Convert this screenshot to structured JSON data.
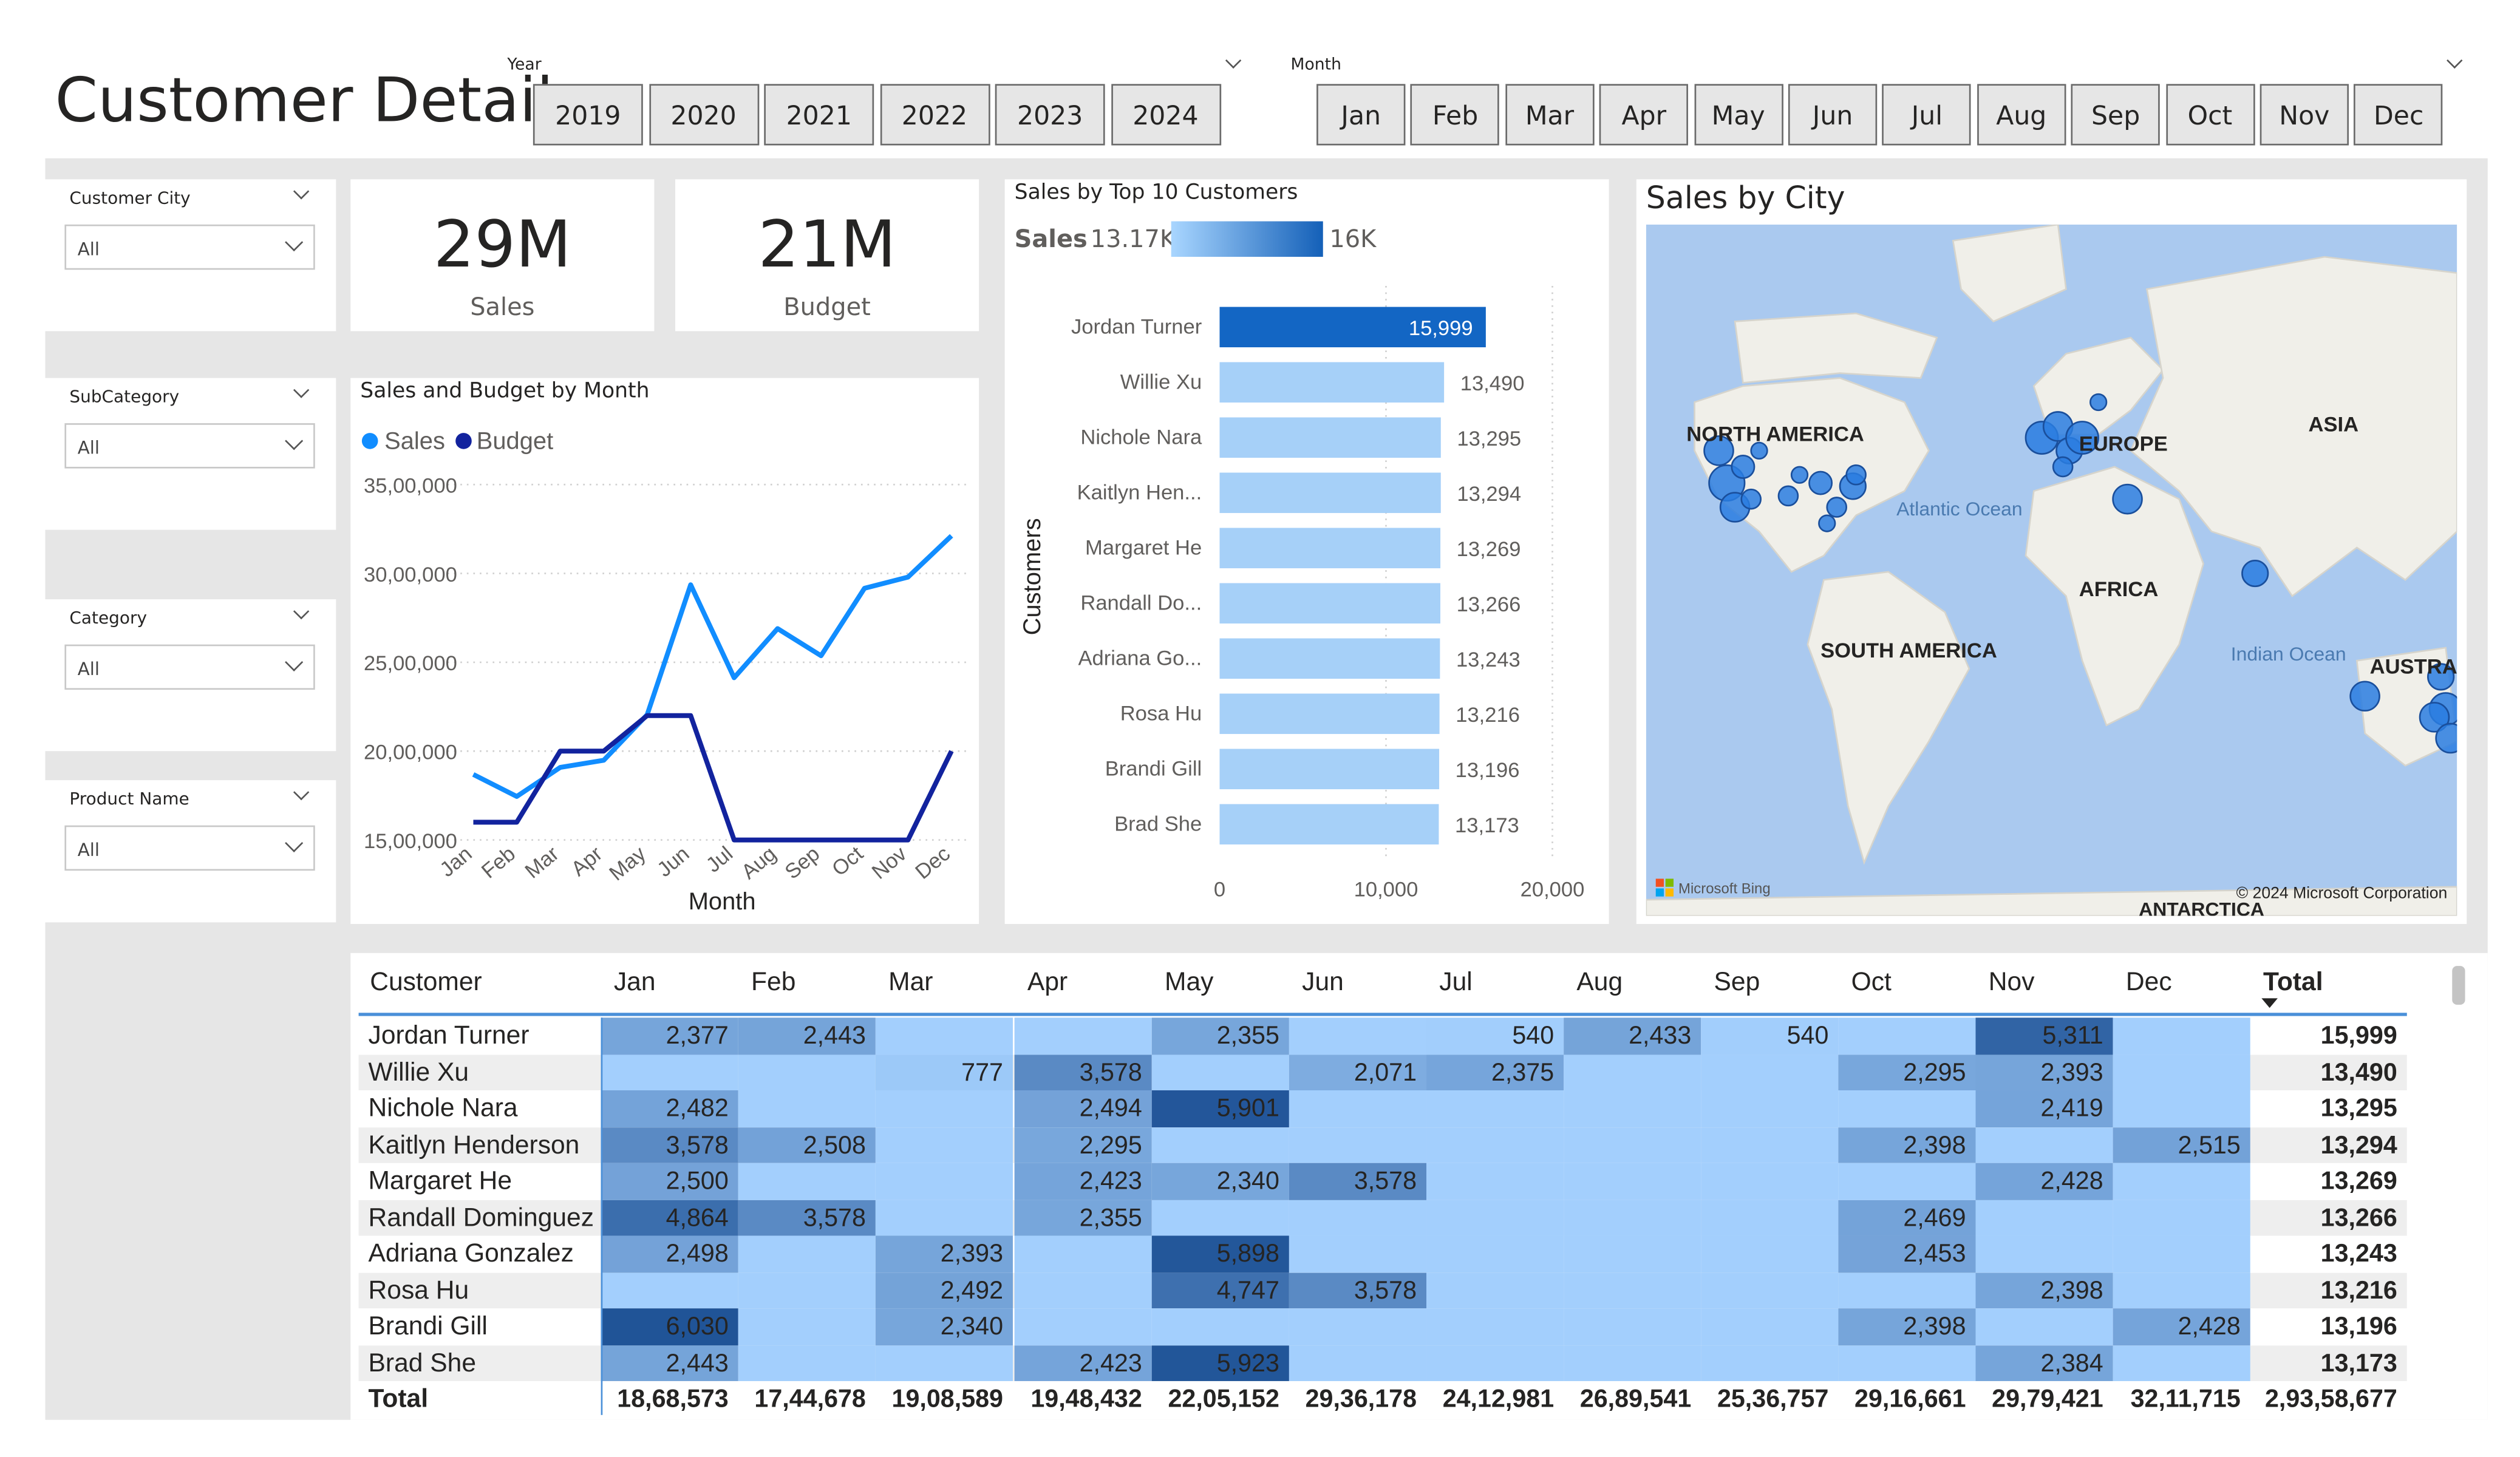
{
  "page": {
    "title": "Customer Detail"
  },
  "year_slicer": {
    "caption": "Year",
    "items": [
      "2019",
      "2020",
      "2021",
      "2022",
      "2023",
      "2024"
    ]
  },
  "month_slicer": {
    "caption": "Month",
    "items": [
      "Jan",
      "Feb",
      "Mar",
      "Apr",
      "May",
      "Jun",
      "Jul",
      "Aug",
      "Sep",
      "Oct",
      "Nov",
      "Dec"
    ]
  },
  "filters": [
    {
      "label": "Customer City",
      "value": "All"
    },
    {
      "label": "SubCategory",
      "value": "All"
    },
    {
      "label": "Category",
      "value": "All"
    },
    {
      "label": "Product Name",
      "value": "All"
    }
  ],
  "kpis": {
    "sales_value": "29M",
    "sales_label": "Sales",
    "budget_value": "21M",
    "budget_label": "Budget"
  },
  "line_chart": {
    "title": "Sales and Budget by Month",
    "legend_sales": "Sales",
    "legend_budget": "Budget",
    "xlabel": "Month",
    "sales_color": "#118dff",
    "budget_color": "#12239e"
  },
  "bar_chart": {
    "title": "Sales by Top 10 Customers",
    "gradient_label": "Sales",
    "gradient_min": "13.17K",
    "gradient_max": "16K",
    "ylabel": "Customers"
  },
  "map": {
    "title": "Sales by City",
    "labels": [
      "NORTH AMERICA",
      "EUROPE",
      "ASIA",
      "AFRICA",
      "SOUTH AMERICA",
      "AUSTRALIA",
      "ANTARCTICA",
      "Atlantic Ocean",
      "Indian Ocean"
    ],
    "attribution_left": "Microsoft Bing",
    "attribution_right": "© 2024 Microsoft Corporation"
  },
  "chart_data": [
    {
      "type": "line",
      "title": "Sales and Budget by Month",
      "xlabel": "Month",
      "categories": [
        "Jan",
        "Feb",
        "Mar",
        "Apr",
        "May",
        "Jun",
        "Jul",
        "Aug",
        "Sep",
        "Oct",
        "Nov",
        "Dec"
      ],
      "series": [
        {
          "name": "Sales",
          "values": [
            1868573,
            1744678,
            1908589,
            1948432,
            2205152,
            2936178,
            2412981,
            2689541,
            2536757,
            2916661,
            2979421,
            3211715
          ]
        },
        {
          "name": "Budget",
          "values": [
            1600000,
            1600000,
            2000000,
            2000000,
            2200000,
            2200000,
            1500000,
            1500000,
            1500000,
            1500000,
            1500000,
            2000000
          ]
        }
      ],
      "ylim": [
        1500000,
        3500000
      ],
      "yticks": [
        {
          "v": 1500000,
          "label": "15,00,000"
        },
        {
          "v": 2000000,
          "label": "20,00,000"
        },
        {
          "v": 2500000,
          "label": "25,00,000"
        },
        {
          "v": 3000000,
          "label": "30,00,000"
        },
        {
          "v": 3500000,
          "label": "35,00,000"
        }
      ]
    },
    {
      "type": "bar",
      "orientation": "horizontal",
      "title": "Sales by Top 10 Customers",
      "ylabel": "Customers",
      "categories": [
        "Jordan Turner",
        "Willie Xu",
        "Nichole Nara",
        "Kaitlyn Hen...",
        "Margaret He",
        "Randall Do...",
        "Adriana Go...",
        "Rosa Hu",
        "Brandi Gill",
        "Brad She"
      ],
      "values": [
        15999,
        13490,
        13295,
        13294,
        13269,
        13266,
        13243,
        13216,
        13196,
        13173
      ],
      "value_labels": [
        "15,999",
        "13,490",
        "13,295",
        "13,294",
        "13,269",
        "13,266",
        "13,243",
        "13,216",
        "13,196",
        "13,173"
      ],
      "xlim": [
        0,
        20000
      ],
      "xticks": [
        {
          "v": 0,
          "label": "0"
        },
        {
          "v": 10000,
          "label": "10,000"
        },
        {
          "v": 20000,
          "label": "20,000"
        }
      ]
    }
  ],
  "matrix": {
    "headers": [
      "Customer",
      "Jan",
      "Feb",
      "Mar",
      "Apr",
      "May",
      "Jun",
      "Jul",
      "Aug",
      "Sep",
      "Oct",
      "Nov",
      "Dec",
      "Total"
    ],
    "rows": [
      {
        "name": "Jordan Turner",
        "cells": [
          "2,377",
          "2,443",
          "",
          "",
          "2,355",
          "",
          "540",
          "2,433",
          "540",
          "",
          "5,311",
          ""
        ],
        "total": "15,999"
      },
      {
        "name": "Willie Xu",
        "cells": [
          "",
          "",
          "777",
          "3,578",
          "",
          "2,071",
          "2,375",
          "",
          "",
          "2,295",
          "2,393",
          ""
        ],
        "total": "13,490"
      },
      {
        "name": "Nichole Nara",
        "cells": [
          "2,482",
          "",
          "",
          "2,494",
          "5,901",
          "",
          "",
          "",
          "",
          "",
          "2,419",
          ""
        ],
        "total": "13,295"
      },
      {
        "name": "Kaitlyn Henderson",
        "cells": [
          "3,578",
          "2,508",
          "",
          "2,295",
          "",
          "",
          "",
          "",
          "",
          "2,398",
          "",
          "2,515"
        ],
        "total": "13,294"
      },
      {
        "name": "Margaret He",
        "cells": [
          "2,500",
          "",
          "",
          "2,423",
          "2,340",
          "3,578",
          "",
          "",
          "",
          "",
          "2,428",
          ""
        ],
        "total": "13,269"
      },
      {
        "name": "Randall Dominguez",
        "cells": [
          "4,864",
          "3,578",
          "",
          "2,355",
          "",
          "",
          "",
          "",
          "",
          "2,469",
          "",
          ""
        ],
        "total": "13,266"
      },
      {
        "name": "Adriana Gonzalez",
        "cells": [
          "2,498",
          "",
          "2,393",
          "",
          "5,898",
          "",
          "",
          "",
          "",
          "2,453",
          "",
          ""
        ],
        "total": "13,243"
      },
      {
        "name": "Rosa Hu",
        "cells": [
          "",
          "",
          "2,492",
          "",
          "4,747",
          "3,578",
          "",
          "",
          "",
          "",
          "2,398",
          ""
        ],
        "total": "13,216"
      },
      {
        "name": "Brandi Gill",
        "cells": [
          "6,030",
          "",
          "2,340",
          "",
          "",
          "",
          "",
          "",
          "",
          "2,398",
          "",
          "2,428"
        ],
        "total": "13,196"
      },
      {
        "name": "Brad She",
        "cells": [
          "2,443",
          "",
          "",
          "2,423",
          "5,923",
          "",
          "",
          "",
          "",
          "",
          "2,384",
          ""
        ],
        "total": "13,173"
      }
    ],
    "total_row": {
      "name": "Total",
      "cells": [
        "18,68,573",
        "17,44,678",
        "19,08,589",
        "19,48,432",
        "22,05,152",
        "29,36,178",
        "24,12,981",
        "26,89,541",
        "25,36,757",
        "29,16,661",
        "29,79,421",
        "32,11,715"
      ],
      "total": "2,93,58,677"
    }
  }
}
